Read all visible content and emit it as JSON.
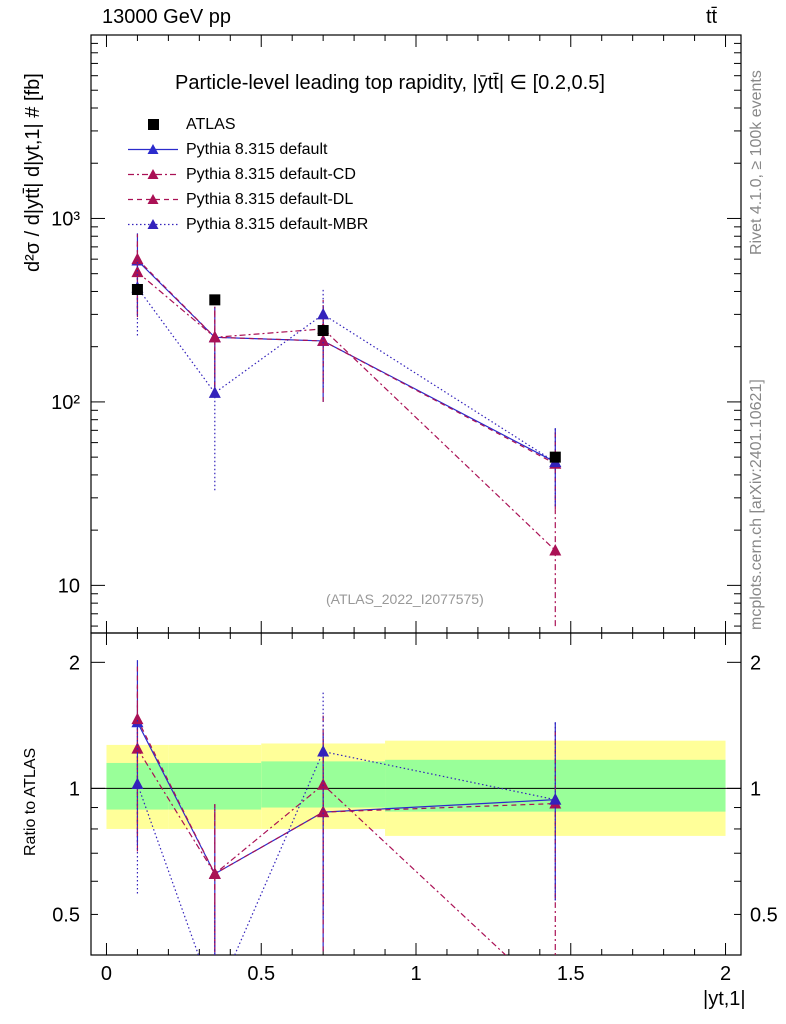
{
  "header": {
    "energy": "13000 GeV pp",
    "process": "tt̄"
  },
  "side_labels": {
    "rivet": "Rivet 4.1.0, ≥ 100k events",
    "mcplots": "mcplots.cern.ch [arXiv:2401.10621]"
  },
  "chart_data": {
    "type": "scatter",
    "title": "Particle-level leading top rapidity, |ȳtt̄| ∈ [0.2,0.5]",
    "ylabel": "d²σ / d|ytt̄| d|yt,1| # [fb]",
    "ratio_ylabel": "Ratio to ATLAS",
    "xlabel": "|yt,1|",
    "analysis": "(ATLAS_2022_I2077575)",
    "xlim": [
      -0.05,
      2.05
    ],
    "ylim": [
      5.5,
      10000
    ],
    "ratio_ylim": [
      0.4,
      2.35
    ],
    "x_ticks": [
      "0",
      "0.5",
      "1",
      "1.5",
      "2"
    ],
    "y_ticks": [
      "10",
      "10²",
      "10³"
    ],
    "ratio_ticks": [
      "0.5",
      "1",
      "2"
    ],
    "x": [
      0.1,
      0.35,
      0.7,
      1.45
    ],
    "data": {
      "name": "ATLAS",
      "values": [
        410,
        360,
        245,
        50
      ],
      "bins": [
        [
          0,
          0.2
        ],
        [
          0.2,
          0.5
        ],
        [
          0.5,
          0.9
        ],
        [
          0.9,
          2.0
        ]
      ],
      "band_inner": [
        [
          0.89,
          1.15
        ],
        [
          0.89,
          1.15
        ],
        [
          0.9,
          1.16
        ],
        [
          0.88,
          1.17
        ]
      ],
      "band_outer": [
        [
          0.8,
          1.27
        ],
        [
          0.8,
          1.27
        ],
        [
          0.8,
          1.28
        ],
        [
          0.77,
          1.3
        ]
      ]
    },
    "series": [
      {
        "name": "Pythia 8.315 default",
        "color": "#2b2bcc",
        "dash": "",
        "values": [
          590,
          225,
          215,
          47
        ],
        "err_low": [
          300,
          120,
          100,
          27
        ],
        "err_high": [
          830,
          330,
          330,
          72
        ]
      },
      {
        "name": "Pythia 8.315 default-CD",
        "color": "#aa1155",
        "dash": "6,3,2,3",
        "values": [
          510,
          225,
          250,
          15.5
        ],
        "err_low": [
          290,
          120,
          130,
          6
        ],
        "err_high": [
          720,
          330,
          370,
          26
        ]
      },
      {
        "name": "Pythia 8.315 default-DL",
        "color": "#aa1155",
        "dash": "5,4",
        "values": [
          600,
          225,
          215,
          46
        ],
        "err_low": [
          320,
          120,
          100,
          26
        ],
        "err_high": [
          820,
          330,
          330,
          70
        ]
      },
      {
        "name": "Pythia 8.315 default-MBR",
        "color": "#3322bb",
        "dash": "1.5,2.5",
        "values": [
          420,
          112,
          300,
          47
        ],
        "err_low": [
          230,
          33,
          120,
          27
        ],
        "err_high": [
          600,
          190,
          420,
          72
        ]
      }
    ]
  }
}
